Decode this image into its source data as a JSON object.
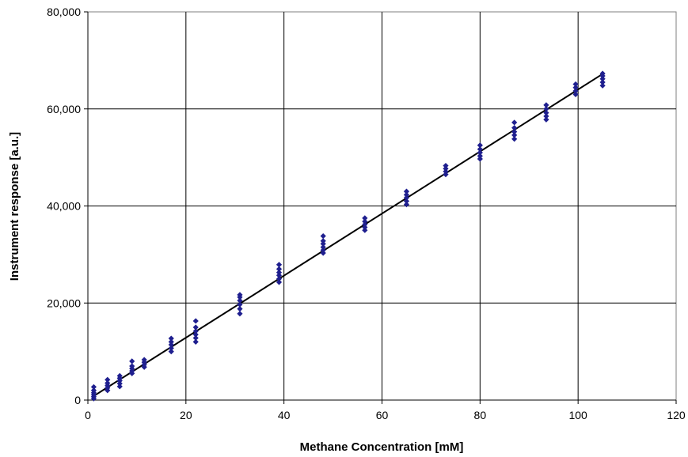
{
  "chart_data": {
    "type": "scatter",
    "xlabel": "Methane Concentration [mM]",
    "ylabel": "Instrument response [a.u.]",
    "xlim": [
      0,
      120
    ],
    "ylim": [
      0,
      80000
    ],
    "x_ticks": [
      0,
      20,
      40,
      60,
      80,
      100,
      120
    ],
    "y_ticks": [
      0,
      20000,
      40000,
      60000,
      80000
    ],
    "x_tick_labels": [
      "0",
      "20",
      "40",
      "60",
      "80",
      "100",
      "120"
    ],
    "y_tick_labels": [
      "0",
      "20,000",
      "40,000",
      "60,000",
      "80,000"
    ],
    "grid": "on",
    "legend": "none",
    "marker_color": "#1f1f8f",
    "fit_line_color": "#000000",
    "series": [
      {
        "values": [
          [
            1.2,
            300
          ],
          [
            1.2,
            700
          ],
          [
            1.2,
            1100
          ],
          [
            1.2,
            1500
          ],
          [
            1.2,
            2000
          ],
          [
            1.2,
            2700
          ],
          [
            4.0,
            2000
          ],
          [
            4.0,
            2500
          ],
          [
            4.0,
            3000
          ],
          [
            4.0,
            3500
          ],
          [
            4.0,
            4200
          ],
          [
            6.5,
            2800
          ],
          [
            6.5,
            3400
          ],
          [
            6.5,
            4000
          ],
          [
            6.5,
            4500
          ],
          [
            6.5,
            5000
          ],
          [
            9.0,
            5500
          ],
          [
            9.0,
            6000
          ],
          [
            9.0,
            6500
          ],
          [
            9.0,
            7000
          ],
          [
            9.0,
            8000
          ],
          [
            11.5,
            6800
          ],
          [
            11.5,
            7300
          ],
          [
            11.5,
            7800
          ],
          [
            11.5,
            8300
          ],
          [
            17.0,
            10000
          ],
          [
            17.0,
            10700
          ],
          [
            17.0,
            11400
          ],
          [
            17.0,
            12000
          ],
          [
            17.0,
            12700
          ],
          [
            22.0,
            12000
          ],
          [
            22.0,
            12800
          ],
          [
            22.0,
            13500
          ],
          [
            22.0,
            14200
          ],
          [
            22.0,
            15000
          ],
          [
            22.0,
            16300
          ],
          [
            31.0,
            17800
          ],
          [
            31.0,
            18800
          ],
          [
            31.0,
            19700
          ],
          [
            31.0,
            20500
          ],
          [
            31.0,
            21200
          ],
          [
            31.0,
            21700
          ],
          [
            39.0,
            24300
          ],
          [
            39.0,
            25000
          ],
          [
            39.0,
            25700
          ],
          [
            39.0,
            26300
          ],
          [
            39.0,
            27000
          ],
          [
            39.0,
            27900
          ],
          [
            48.0,
            30300
          ],
          [
            48.0,
            30900
          ],
          [
            48.0,
            31500
          ],
          [
            48.0,
            32200
          ],
          [
            48.0,
            32800
          ],
          [
            48.0,
            33800
          ],
          [
            56.5,
            35000
          ],
          [
            56.5,
            35600
          ],
          [
            56.5,
            36200
          ],
          [
            56.5,
            36800
          ],
          [
            56.5,
            37500
          ],
          [
            65.0,
            40300
          ],
          [
            65.0,
            41000
          ],
          [
            65.0,
            41700
          ],
          [
            65.0,
            42300
          ],
          [
            65.0,
            43000
          ],
          [
            73.0,
            46500
          ],
          [
            73.0,
            47100
          ],
          [
            73.0,
            47700
          ],
          [
            73.0,
            48300
          ],
          [
            80.0,
            49700
          ],
          [
            80.0,
            50300
          ],
          [
            80.0,
            51000
          ],
          [
            80.0,
            51700
          ],
          [
            80.0,
            52500
          ],
          [
            87.0,
            53800
          ],
          [
            87.0,
            54600
          ],
          [
            87.0,
            55300
          ],
          [
            87.0,
            56100
          ],
          [
            87.0,
            57200
          ],
          [
            93.5,
            57800
          ],
          [
            93.5,
            58500
          ],
          [
            93.5,
            59200
          ],
          [
            93.5,
            60000
          ],
          [
            93.5,
            60800
          ],
          [
            99.5,
            63000
          ],
          [
            99.5,
            63700
          ],
          [
            99.5,
            64400
          ],
          [
            99.5,
            65100
          ],
          [
            105.0,
            64800
          ],
          [
            105.0,
            65500
          ],
          [
            105.0,
            66200
          ],
          [
            105.0,
            66800
          ],
          [
            105.0,
            67300
          ]
        ]
      }
    ],
    "fit_line": {
      "x": [
        1.0,
        105.0
      ],
      "y": [
        700,
        67200
      ]
    }
  }
}
